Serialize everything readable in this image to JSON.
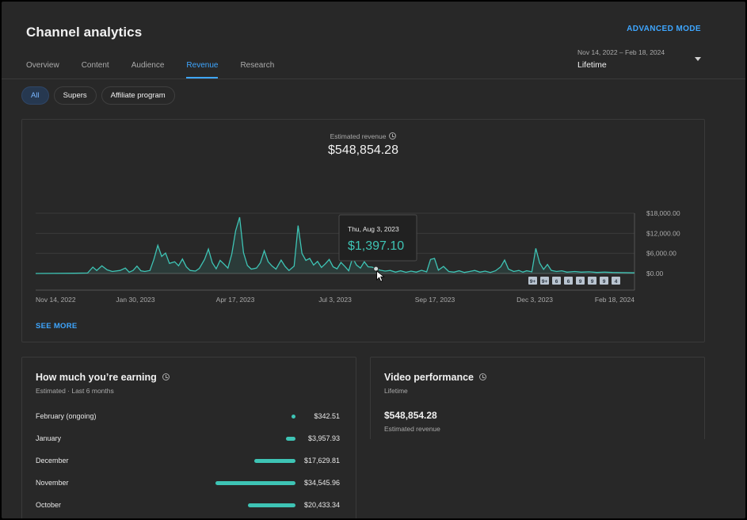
{
  "header": {
    "title": "Channel analytics",
    "advanced_mode": "ADVANCED MODE",
    "tabs": [
      {
        "label": "Overview"
      },
      {
        "label": "Content"
      },
      {
        "label": "Audience"
      },
      {
        "label": "Revenue",
        "active": true
      },
      {
        "label": "Research"
      }
    ],
    "date_range": {
      "dates": "Nov 14, 2022 – Feb 18, 2024",
      "label": "Lifetime"
    }
  },
  "filters": [
    {
      "label": "All",
      "active": true
    },
    {
      "label": "Supers"
    },
    {
      "label": "Affiliate program"
    }
  ],
  "revenue_card": {
    "label": "Estimated revenue",
    "value": "$548,854.28",
    "see_more": "SEE MORE",
    "tooltip": {
      "date": "Thu, Aug 3, 2023",
      "value": "$1,397.10"
    },
    "event_markers": [
      "9+",
      "9+",
      "6",
      "6",
      "9",
      "9",
      "9",
      "4"
    ]
  },
  "chart_data": {
    "type": "area",
    "x_ticks": [
      "Nov 14, 2022",
      "Jan 30, 2023",
      "Apr 17, 2023",
      "Jul 3, 2023",
      "Sep 17, 2023",
      "Dec 3, 2023",
      "Feb 18, 2024"
    ],
    "y_ticks": [
      "$0.00",
      "$6,000.00",
      "$12,000.00",
      "$18,000.00"
    ],
    "ylim": [
      0,
      18000
    ],
    "x_start": "2022-11-14",
    "x_end": "2024-02-18",
    "points": [
      [
        "2022-11-14",
        0
      ],
      [
        "2022-12-14",
        60
      ],
      [
        "2022-12-24",
        150
      ],
      [
        "2022-12-28",
        1900
      ],
      [
        "2022-12-31",
        900
      ],
      [
        "2023-01-04",
        2300
      ],
      [
        "2023-01-08",
        1100
      ],
      [
        "2023-01-12",
        600
      ],
      [
        "2023-01-18",
        900
      ],
      [
        "2023-01-22",
        1600
      ],
      [
        "2023-01-25",
        400
      ],
      [
        "2023-01-28",
        900
      ],
      [
        "2023-01-31",
        2200
      ],
      [
        "2023-02-03",
        800
      ],
      [
        "2023-02-06",
        600
      ],
      [
        "2023-02-10",
        900
      ],
      [
        "2023-02-13",
        4200
      ],
      [
        "2023-02-16",
        8400
      ],
      [
        "2023-02-19",
        5100
      ],
      [
        "2023-02-22",
        6100
      ],
      [
        "2023-02-25",
        3000
      ],
      [
        "2023-03-01",
        3500
      ],
      [
        "2023-03-04",
        2300
      ],
      [
        "2023-03-07",
        4300
      ],
      [
        "2023-03-10",
        2000
      ],
      [
        "2023-03-13",
        900
      ],
      [
        "2023-03-17",
        700
      ],
      [
        "2023-03-20",
        1500
      ],
      [
        "2023-03-24",
        4200
      ],
      [
        "2023-03-27",
        7300
      ],
      [
        "2023-03-30",
        3200
      ],
      [
        "2023-04-02",
        1400
      ],
      [
        "2023-04-05",
        3900
      ],
      [
        "2023-04-08",
        2800
      ],
      [
        "2023-04-11",
        1600
      ],
      [
        "2023-04-14",
        5800
      ],
      [
        "2023-04-17",
        12800
      ],
      [
        "2023-04-20",
        16800
      ],
      [
        "2023-04-23",
        6200
      ],
      [
        "2023-04-26",
        2400
      ],
      [
        "2023-04-29",
        1300
      ],
      [
        "2023-05-03",
        1600
      ],
      [
        "2023-05-06",
        3200
      ],
      [
        "2023-05-09",
        6800
      ],
      [
        "2023-05-12",
        3500
      ],
      [
        "2023-05-15",
        2200
      ],
      [
        "2023-05-18",
        1300
      ],
      [
        "2023-05-22",
        4000
      ],
      [
        "2023-05-25",
        2100
      ],
      [
        "2023-05-28",
        900
      ],
      [
        "2023-06-01",
        2200
      ],
      [
        "2023-06-04",
        14300
      ],
      [
        "2023-06-07",
        6000
      ],
      [
        "2023-06-10",
        3900
      ],
      [
        "2023-06-13",
        4500
      ],
      [
        "2023-06-16",
        2500
      ],
      [
        "2023-06-19",
        3600
      ],
      [
        "2023-06-22",
        1800
      ],
      [
        "2023-06-25",
        2900
      ],
      [
        "2023-06-28",
        4200
      ],
      [
        "2023-07-01",
        2000
      ],
      [
        "2023-07-04",
        1400
      ],
      [
        "2023-07-07",
        3300
      ],
      [
        "2023-07-10",
        2100
      ],
      [
        "2023-07-13",
        800
      ],
      [
        "2023-07-16",
        4700
      ],
      [
        "2023-07-19",
        2500
      ],
      [
        "2023-07-22",
        1600
      ],
      [
        "2023-07-25",
        3500
      ],
      [
        "2023-07-28",
        2000
      ],
      [
        "2023-07-31",
        1900
      ],
      [
        "2023-08-03",
        1400
      ],
      [
        "2023-08-06",
        1000
      ],
      [
        "2023-08-10",
        700
      ],
      [
        "2023-08-14",
        900
      ],
      [
        "2023-08-18",
        400
      ],
      [
        "2023-08-22",
        800
      ],
      [
        "2023-08-26",
        350
      ],
      [
        "2023-08-30",
        700
      ],
      [
        "2023-09-03",
        400
      ],
      [
        "2023-09-07",
        950
      ],
      [
        "2023-09-11",
        500
      ],
      [
        "2023-09-14",
        4200
      ],
      [
        "2023-09-17",
        4500
      ],
      [
        "2023-09-20",
        1000
      ],
      [
        "2023-09-24",
        2100
      ],
      [
        "2023-09-28",
        600
      ],
      [
        "2023-10-02",
        400
      ],
      [
        "2023-10-06",
        800
      ],
      [
        "2023-10-10",
        300
      ],
      [
        "2023-10-14",
        600
      ],
      [
        "2023-10-18",
        900
      ],
      [
        "2023-10-22",
        400
      ],
      [
        "2023-10-26",
        700
      ],
      [
        "2023-10-30",
        300
      ],
      [
        "2023-11-03",
        800
      ],
      [
        "2023-11-07",
        2000
      ],
      [
        "2023-11-10",
        4000
      ],
      [
        "2023-11-13",
        1300
      ],
      [
        "2023-11-17",
        600
      ],
      [
        "2023-11-21",
        900
      ],
      [
        "2023-11-24",
        400
      ],
      [
        "2023-11-27",
        800
      ],
      [
        "2023-12-01",
        500
      ],
      [
        "2023-12-04",
        7500
      ],
      [
        "2023-12-07",
        3100
      ],
      [
        "2023-12-10",
        1200
      ],
      [
        "2023-12-13",
        2700
      ],
      [
        "2023-12-16",
        900
      ],
      [
        "2023-12-20",
        600
      ],
      [
        "2023-12-24",
        800
      ],
      [
        "2023-12-28",
        400
      ],
      [
        "2024-01-03",
        600
      ],
      [
        "2024-01-08",
        400
      ],
      [
        "2024-01-14",
        500
      ],
      [
        "2024-01-20",
        300
      ],
      [
        "2024-01-26",
        400
      ],
      [
        "2024-02-01",
        300
      ],
      [
        "2024-02-08",
        250
      ],
      [
        "2024-02-18",
        200
      ]
    ]
  },
  "earnings": {
    "title": "How much you’re earning",
    "subtitle": "Estimated · Last 6 months",
    "rows": [
      {
        "month": "February (ongoing)",
        "amount": "$342.51",
        "value": 342.51
      },
      {
        "month": "January",
        "amount": "$3,957.93",
        "value": 3957.93
      },
      {
        "month": "December",
        "amount": "$17,629.81",
        "value": 17629.81
      },
      {
        "month": "November",
        "amount": "$34,545.96",
        "value": 34545.96
      },
      {
        "month": "October",
        "amount": "$20,433.34",
        "value": 20433.34
      }
    ]
  },
  "video_performance": {
    "title": "Video performance",
    "subtitle": "Lifetime",
    "value": "$548,854.28",
    "value_label": "Estimated revenue"
  },
  "colors": {
    "accent": "#3ea6ff",
    "series": "#3ec4b5",
    "background": "#282828"
  }
}
